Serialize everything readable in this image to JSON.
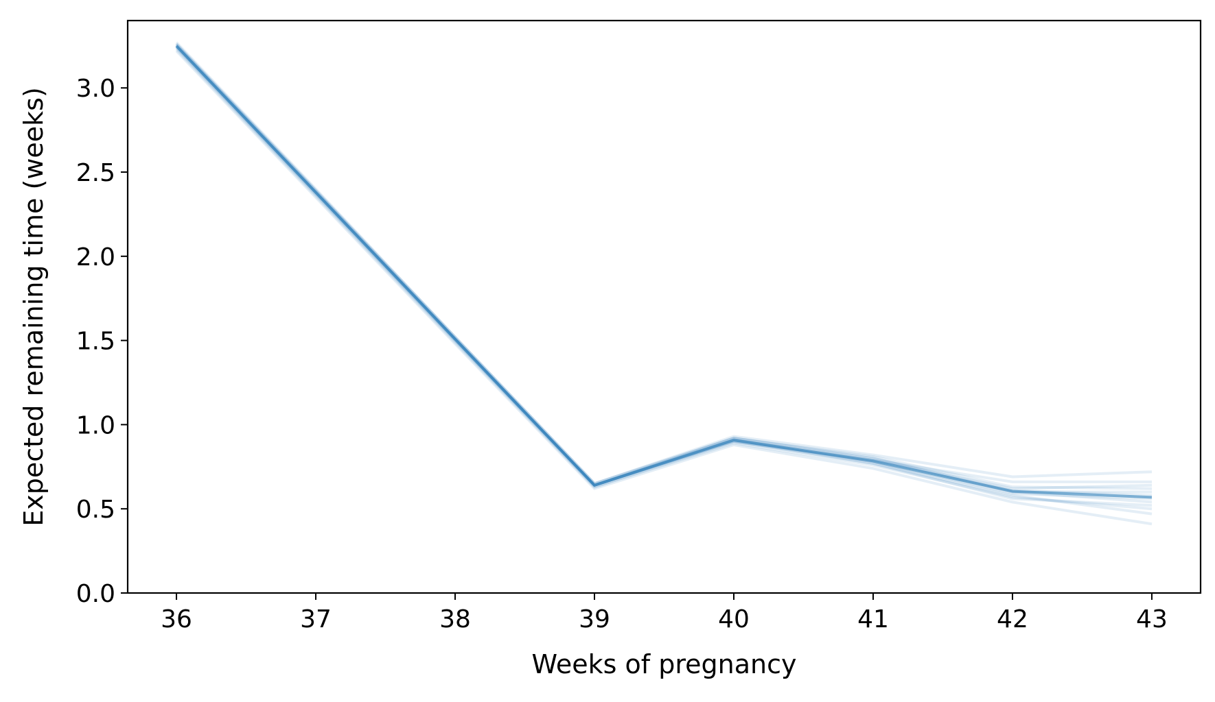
{
  "chart_data": {
    "type": "line",
    "title": "",
    "xlabel": "Weeks of pregnancy",
    "ylabel": "Expected remaining time (weeks)",
    "xlim": [
      35.65,
      43.35
    ],
    "ylim": [
      0.0,
      3.4
    ],
    "xticks": [
      36,
      37,
      38,
      39,
      40,
      41,
      42,
      43
    ],
    "xtick_labels": [
      "36",
      "37",
      "38",
      "39",
      "40",
      "41",
      "42",
      "43"
    ],
    "yticks": [
      0.0,
      0.5,
      1.0,
      1.5,
      2.0,
      2.5,
      3.0
    ],
    "ytick_labels": [
      "0.0",
      "0.5",
      "1.0",
      "1.5",
      "2.0",
      "2.5",
      "3.0"
    ],
    "grid": false,
    "legend": false,
    "line_color": "#1f77b4",
    "x": [
      36,
      37,
      38,
      39,
      40,
      41,
      42,
      43
    ],
    "series": [
      {
        "values": [
          3.25,
          2.38,
          1.51,
          0.64,
          0.91,
          0.78,
          0.6,
          0.54
        ]
      },
      {
        "values": [
          3.26,
          2.39,
          1.52,
          0.65,
          0.92,
          0.81,
          0.63,
          0.62
        ]
      },
      {
        "values": [
          3.24,
          2.37,
          1.5,
          0.64,
          0.9,
          0.79,
          0.66,
          0.66
        ]
      },
      {
        "values": [
          3.27,
          2.4,
          1.52,
          0.65,
          0.93,
          0.82,
          0.69,
          0.72
        ]
      },
      {
        "values": [
          3.23,
          2.36,
          1.49,
          0.63,
          0.89,
          0.76,
          0.57,
          0.5
        ]
      },
      {
        "values": [
          3.25,
          2.38,
          1.51,
          0.64,
          0.91,
          0.77,
          0.58,
          0.47
        ]
      },
      {
        "values": [
          3.22,
          2.35,
          1.48,
          0.62,
          0.88,
          0.74,
          0.54,
          0.41
        ]
      },
      {
        "values": [
          3.26,
          2.39,
          1.51,
          0.64,
          0.92,
          0.8,
          0.61,
          0.58
        ]
      },
      {
        "values": [
          3.24,
          2.37,
          1.5,
          0.63,
          0.9,
          0.78,
          0.59,
          0.56
        ]
      },
      {
        "values": [
          3.25,
          2.38,
          1.51,
          0.64,
          0.91,
          0.79,
          0.62,
          0.64
        ]
      },
      {
        "values": [
          3.25,
          2.38,
          1.51,
          0.64,
          0.9,
          0.77,
          0.56,
          0.52
        ]
      },
      {
        "values": [
          3.26,
          2.39,
          1.52,
          0.65,
          0.92,
          0.8,
          0.6,
          0.6
        ]
      }
    ]
  }
}
